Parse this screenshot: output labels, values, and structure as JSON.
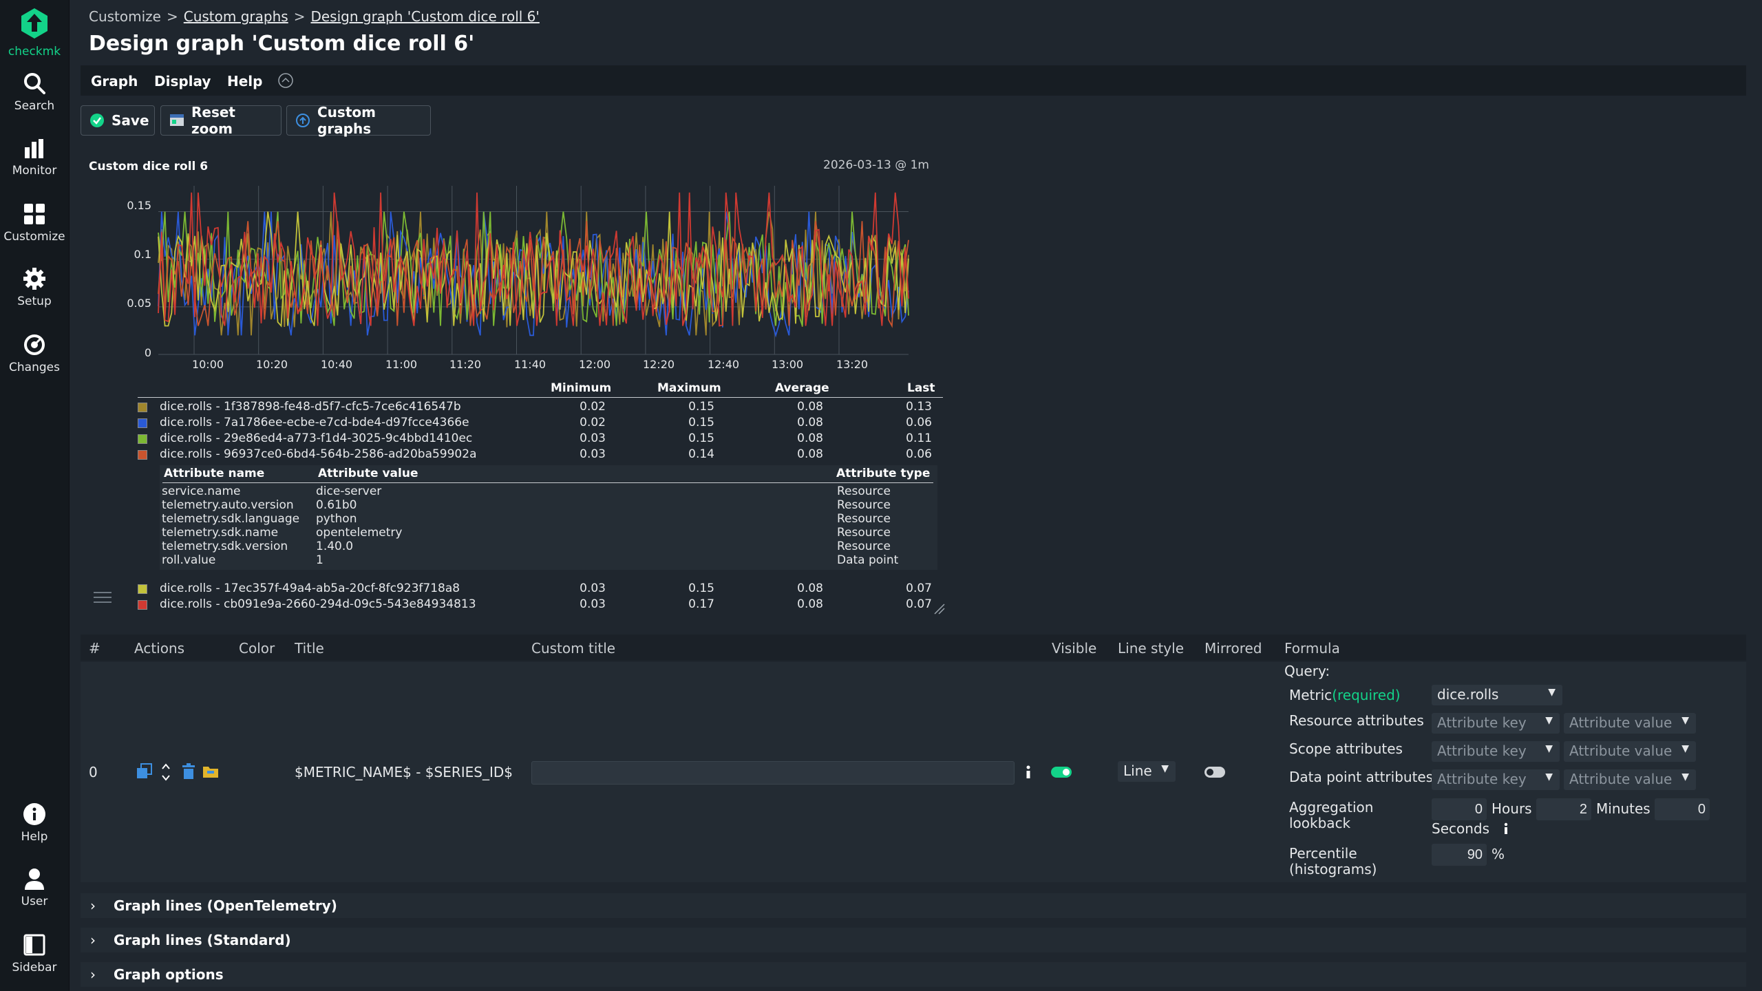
{
  "app": {
    "brand": "checkmk",
    "accent": "#13d389"
  },
  "nav": {
    "search": "Search",
    "monitor": "Monitor",
    "customize": "Customize",
    "setup": "Setup",
    "changes": "Changes",
    "help": "Help",
    "user": "User",
    "sidebar": "Sidebar"
  },
  "breadcrumb": {
    "root": "Customize",
    "sep": ">",
    "level1": "Custom graphs",
    "level2": "Design graph 'Custom dice roll 6'"
  },
  "page_title": "Design graph 'Custom dice roll 6'",
  "menu": {
    "graph": "Graph",
    "display": "Display",
    "help": "Help"
  },
  "toolbar": {
    "save": "Save",
    "reset_zoom": "Reset zoom",
    "custom_graphs": "Custom graphs"
  },
  "graph": {
    "title": "Custom dice roll 6",
    "timestamp": "2026-03-13 @ 1m",
    "y_ticks": [
      "0.15",
      "0.1",
      "0.05",
      "0"
    ],
    "x_ticks": [
      "10:00",
      "10:20",
      "10:40",
      "11:00",
      "11:20",
      "11:40",
      "12:00",
      "12:20",
      "12:40",
      "13:00",
      "13:20"
    ],
    "legend_headers": {
      "min": "Minimum",
      "max": "Maximum",
      "avg": "Average",
      "last": "Last"
    },
    "attr_headers": {
      "name": "Attribute name",
      "value": "Attribute value",
      "type": "Attribute type"
    }
  },
  "chart_data": {
    "type": "line",
    "ylim": [
      0,
      0.17
    ],
    "x_range": [
      "09:51",
      "13:38"
    ],
    "series": [
      {
        "name": "dice.rolls - 1f387898-fe48-d5f7-cfc5-7ce6c416547b",
        "color": "#a0862c",
        "min": "0.02",
        "max": "0.15",
        "avg": "0.08",
        "last": "0.13"
      },
      {
        "name": "dice.rolls - 7a1786ee-ecbe-e7cd-bde4-d97fcce4366e",
        "color": "#2a5ad6",
        "min": "0.02",
        "max": "0.15",
        "avg": "0.08",
        "last": "0.06"
      },
      {
        "name": "dice.rolls - 29e86ed4-a773-f1d4-3025-9c4bbd1410ec",
        "color": "#7cb833",
        "min": "0.03",
        "max": "0.15",
        "avg": "0.08",
        "last": "0.11"
      },
      {
        "name": "dice.rolls - 96937ce0-6bd4-564b-2586-ad20ba59902a",
        "color": "#c9542e",
        "min": "0.03",
        "max": "0.14",
        "avg": "0.08",
        "last": "0.06"
      },
      {
        "name": "dice.rolls - 17ec357f-49a4-ab5a-20cf-8fc923f718a8",
        "color": "#c2c23a",
        "min": "0.03",
        "max": "0.15",
        "avg": "0.08",
        "last": "0.07"
      },
      {
        "name": "dice.rolls - cb091e9a-2660-294d-09c5-543e84934813",
        "color": "#d03a32",
        "min": "0.03",
        "max": "0.17",
        "avg": "0.08",
        "last": "0.07"
      }
    ]
  },
  "attributes": [
    {
      "name": "service.name",
      "value": "dice-server",
      "type": "Resource"
    },
    {
      "name": "telemetry.auto.version",
      "value": "0.61b0",
      "type": "Resource"
    },
    {
      "name": "telemetry.sdk.language",
      "value": "python",
      "type": "Resource"
    },
    {
      "name": "telemetry.sdk.name",
      "value": "opentelemetry",
      "type": "Resource"
    },
    {
      "name": "telemetry.sdk.version",
      "value": "1.40.0",
      "type": "Resource"
    },
    {
      "name": "roll.value",
      "value": "1",
      "type": "Data point"
    }
  ],
  "lines_table": {
    "headers": {
      "num": "#",
      "actions": "Actions",
      "color": "Color",
      "title": "Title",
      "custom_title": "Custom title",
      "visible": "Visible",
      "line_style": "Line style",
      "mirrored": "Mirrored",
      "formula": "Formula"
    },
    "row": {
      "index": "0",
      "title": "$METRIC_NAME$ - $SERIES_ID$",
      "custom_title": "",
      "visible": true,
      "line_style": "Line",
      "mirrored": false
    }
  },
  "formula": {
    "query_label": "Query:",
    "metric_label": "Metric",
    "required_label": "(required)",
    "metric_value": "dice.rolls",
    "resource_label": "Resource attributes",
    "scope_label": "Scope attributes",
    "datapoint_label": "Data point attributes",
    "attr_key_ph": "Attribute key",
    "attr_value_ph": "Attribute value",
    "aggregation_label": "Aggregation lookback",
    "hours_value": "0",
    "hours_label": "Hours",
    "minutes_value": "2",
    "minutes_label": "Minutes",
    "seconds_value": "0",
    "seconds_label": "Seconds",
    "percentile_label": "Percentile (histograms)",
    "percentile_value": "90",
    "percent_sign": "%"
  },
  "sections": {
    "otel": "Graph lines (OpenTelemetry)",
    "standard": "Graph lines (Standard)",
    "options": "Graph options"
  }
}
